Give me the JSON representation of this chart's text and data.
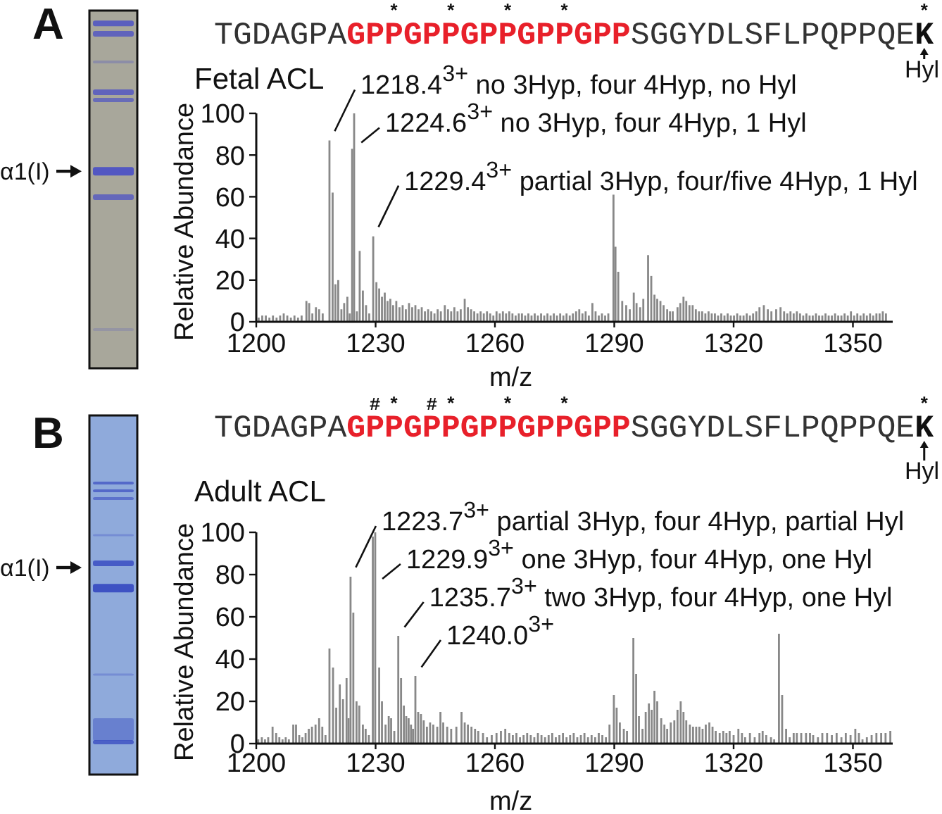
{
  "chart_data": [
    {
      "type": "bar",
      "title": "Fetal ACL",
      "xlabel": "m/z",
      "ylabel": "Relative Abundance",
      "color": "#888888",
      "xlim": [
        1200,
        1360
      ],
      "xticks": [
        1200,
        1230,
        1260,
        1290,
        1320,
        1350
      ],
      "ylim": [
        0,
        100
      ],
      "yticks": [
        0,
        20,
        40,
        60,
        80,
        100
      ],
      "x": [
        1200.6,
        1201.5,
        1202.4,
        1203.3,
        1204.2,
        1205.1,
        1206,
        1206.9,
        1207.8,
        1208.7,
        1209.6,
        1210.5,
        1211.4,
        1212.6,
        1213.3,
        1214.1,
        1215,
        1215.8,
        1216.7,
        1218.4,
        1219.2,
        1219.9,
        1220.6,
        1221.4,
        1222.1,
        1222.9,
        1223.5,
        1224.1,
        1224.6,
        1225.3,
        1226,
        1226.8,
        1227.6,
        1228.4,
        1229.4,
        1230.2,
        1230.9,
        1231.6,
        1232.3,
        1233,
        1233.7,
        1234.4,
        1235.2,
        1236,
        1236.8,
        1237.6,
        1238.4,
        1239.2,
        1240,
        1240.8,
        1241.6,
        1242.4,
        1243.2,
        1244,
        1244.8,
        1245.6,
        1246.4,
        1247.4,
        1248.2,
        1249,
        1249.8,
        1250.6,
        1251.4,
        1252.4,
        1253.2,
        1254,
        1254.8,
        1255.6,
        1256.4,
        1257.2,
        1258,
        1258.8,
        1259.6,
        1260.4,
        1261.2,
        1262,
        1262.8,
        1263.6,
        1264.4,
        1265.2,
        1266,
        1266.8,
        1267.6,
        1268.4,
        1269.2,
        1270,
        1270.8,
        1271.6,
        1272.4,
        1273.2,
        1274,
        1274.8,
        1275.6,
        1276.4,
        1277.2,
        1278,
        1278.8,
        1279.6,
        1280.4,
        1281.2,
        1282,
        1282.8,
        1283.6,
        1284.5,
        1285.3,
        1286.1,
        1286.9,
        1287.7,
        1288.5,
        1289.8,
        1290.3,
        1291,
        1292,
        1293,
        1293.9,
        1294.9,
        1295.6,
        1296.5,
        1297.3,
        1298.5,
        1299.3,
        1300.1,
        1300.8,
        1301.6,
        1302.4,
        1303.3,
        1304,
        1304.7,
        1305.9,
        1306.6,
        1307.4,
        1308.1,
        1308.9,
        1309.7,
        1310.5,
        1311.3,
        1312.1,
        1312.9,
        1313.7,
        1314.5,
        1315.3,
        1316.1,
        1316.9,
        1317.7,
        1318.5,
        1319.3,
        1320.1,
        1320.9,
        1321.7,
        1322.5,
        1323.3,
        1324.1,
        1324.9,
        1325.7,
        1326.5,
        1327.6,
        1328.6,
        1329.5,
        1330.7,
        1331.8,
        1332.7,
        1333.5,
        1334.3,
        1335.1,
        1335.9,
        1336.7,
        1337.5,
        1338.3,
        1339.1,
        1339.9,
        1340.7,
        1341.5,
        1342.3,
        1343.1,
        1343.9,
        1344.7,
        1345.5,
        1346.3,
        1347.1,
        1347.9,
        1348.7,
        1349.5,
        1350.3,
        1351.1,
        1351.9,
        1352.7,
        1353.5,
        1354.3,
        1355.1,
        1355.9,
        1356.7,
        1357.5,
        1358.3
      ],
      "values": [
        2,
        3,
        3,
        2,
        3,
        2,
        3,
        4,
        3,
        2,
        3,
        2,
        3,
        10,
        9,
        4,
        7,
        6,
        4,
        87,
        62,
        18,
        20,
        6,
        9,
        12,
        4,
        83,
        100,
        5,
        34,
        15,
        8,
        4,
        41,
        19,
        16,
        12,
        14,
        10,
        11,
        8,
        10,
        7,
        8,
        6,
        9,
        7,
        8,
        6,
        7,
        5,
        6,
        5,
        4,
        6,
        5,
        8,
        6,
        5,
        7,
        5,
        6,
        11,
        7,
        6,
        5,
        4,
        5,
        4,
        5,
        4,
        3,
        5,
        4,
        5,
        4,
        5,
        4,
        3,
        4,
        4,
        3,
        4,
        3,
        4,
        3,
        4,
        3,
        4,
        3,
        4,
        3,
        4,
        3,
        4,
        3,
        4,
        5,
        6,
        4,
        5,
        3,
        9,
        5,
        3,
        4,
        3,
        4,
        61,
        36,
        24,
        10,
        8,
        6,
        14,
        9,
        7,
        11,
        32,
        22,
        13,
        11,
        10,
        8,
        6,
        5,
        5,
        7,
        9,
        12,
        10,
        8,
        8,
        6,
        5,
        5,
        4,
        5,
        4,
        4,
        3,
        4,
        3,
        4,
        3,
        3,
        4,
        3,
        3,
        4,
        3,
        4,
        5,
        7,
        8,
        6,
        5,
        6,
        7,
        5,
        4,
        5,
        4,
        5,
        4,
        3,
        4,
        3,
        3,
        4,
        3,
        3,
        4,
        3,
        3,
        4,
        3,
        3,
        4,
        3,
        5,
        3,
        4,
        3,
        4,
        3,
        4,
        3,
        4,
        4,
        5,
        4
      ],
      "annotations": [
        "A",
        "TGDAGPA",
        "GPPGPPGPPGPPGPP",
        "SGGYDLSFLPQPPQE",
        "K",
        "         *  *  *  *                  *",
        "Hyl",
        "α1(I)",
        {
          "text": "1218.4$^{3+}$ no 3Hyp, four 4Hyp, no Hyl",
          "x": 1218.4,
          "y": 87
        },
        {
          "text": "1224.6$^{3+}$ no 3Hyp, four 4Hyp, 1 Hyl",
          "x": 1224.6,
          "y": 100
        },
        {
          "text": "1229.4$^{3+}$ partial 3Hyp, four/five 4Hyp, 1 Hyl",
          "x": 1229.4,
          "y": 41
        }
      ]
    },
    {
      "type": "bar",
      "title": "Adult ACL",
      "xlabel": "m/z",
      "ylabel": "Relative Abundance",
      "color": "#888888",
      "xlim": [
        1200,
        1360
      ],
      "xticks": [
        1200,
        1230,
        1260,
        1290,
        1320,
        1350
      ],
      "ylim": [
        0,
        100
      ],
      "yticks": [
        0,
        20,
        40,
        60,
        80,
        100
      ],
      "x": [
        1200.5,
        1201.4,
        1202.2,
        1203,
        1204.1,
        1205,
        1205.8,
        1206.6,
        1207.4,
        1208.2,
        1209.3,
        1210,
        1210.8,
        1211.6,
        1212.4,
        1213.2,
        1214,
        1214.9,
        1215.8,
        1216.6,
        1217.4,
        1218.4,
        1219.3,
        1220.1,
        1221,
        1221.8,
        1222.7,
        1223.2,
        1223.7,
        1224.4,
        1225.2,
        1225.9,
        1226.8,
        1227.5,
        1228.3,
        1229.3,
        1229.9,
        1230.9,
        1231.6,
        1232.5,
        1233.3,
        1233.9,
        1234.7,
        1235.7,
        1236.4,
        1237.1,
        1237.7,
        1238.3,
        1238.9,
        1239.4,
        1240,
        1240.7,
        1241.4,
        1242.1,
        1242.9,
        1243.7,
        1244.5,
        1245.5,
        1246.3,
        1247,
        1248,
        1249,
        1250.3,
        1251.6,
        1252.4,
        1253.2,
        1254.1,
        1255,
        1255.8,
        1257,
        1258,
        1259.2,
        1260.4,
        1261.5,
        1262.6,
        1263.6,
        1264.5,
        1265.4,
        1266.3,
        1267.2,
        1268.1,
        1269,
        1269.9,
        1270.8,
        1271.7,
        1272.6,
        1273.5,
        1274.4,
        1275.3,
        1276.2,
        1277.1,
        1278,
        1278.9,
        1279.8,
        1280.7,
        1281.6,
        1282.5,
        1283.4,
        1284.3,
        1285.2,
        1286.1,
        1287,
        1287.9,
        1288.8,
        1289.9,
        1290.6,
        1291.4,
        1292.4,
        1293.2,
        1294.8,
        1295.5,
        1296.2,
        1297.1,
        1297.9,
        1298.7,
        1299.4,
        1300.1,
        1300.8,
        1301.8,
        1302.6,
        1303.3,
        1304.2,
        1305.1,
        1305.9,
        1306.7,
        1307.4,
        1308.1,
        1309,
        1309.8,
        1310.6,
        1311.4,
        1312.2,
        1313,
        1313.9,
        1314.7,
        1315.5,
        1316.5,
        1317.4,
        1318.2,
        1319,
        1320,
        1321.2,
        1322.1,
        1322.9,
        1324.1,
        1325.3,
        1326.5,
        1327.3,
        1328.2,
        1329.4,
        1330.2,
        1331.4,
        1332.2,
        1333.2,
        1334.1,
        1335.1,
        1335.9,
        1337,
        1338.2,
        1339.2,
        1340,
        1341.2,
        1342.3,
        1343.5,
        1344.7,
        1345.9,
        1347.1,
        1348.2,
        1349.4,
        1350.6,
        1351.5,
        1352.4,
        1353.5,
        1354.7,
        1355.9,
        1357.1,
        1358.2,
        1359.4
      ],
      "values": [
        2,
        3,
        2,
        3,
        8,
        5,
        3,
        2,
        3,
        2,
        9,
        9,
        4,
        3,
        5,
        7,
        8,
        9,
        12,
        8,
        4,
        45,
        36,
        17,
        28,
        21,
        31,
        12,
        79,
        62,
        20,
        18,
        9,
        7,
        4,
        98,
        100,
        36,
        20,
        9,
        13,
        12,
        6,
        51,
        31,
        18,
        13,
        12,
        9,
        7,
        32,
        15,
        14,
        11,
        8,
        10,
        9,
        8,
        15,
        10,
        8,
        7,
        8,
        15,
        10,
        9,
        8,
        7,
        6,
        5,
        3,
        4,
        5,
        6,
        7,
        5,
        4,
        5,
        3,
        4,
        5,
        4,
        3,
        5,
        4,
        3,
        4,
        5,
        3,
        4,
        5,
        3,
        4,
        5,
        3,
        4,
        5,
        3,
        4,
        3,
        5,
        4,
        3,
        9,
        23,
        17,
        10,
        7,
        6,
        50,
        33,
        13,
        7,
        15,
        19,
        16,
        25,
        20,
        12,
        9,
        7,
        10,
        11,
        16,
        20,
        15,
        11,
        9,
        8,
        8,
        8,
        7,
        9,
        10,
        8,
        6,
        5,
        6,
        5,
        6,
        4,
        7,
        5,
        3,
        5,
        3,
        5,
        6,
        4,
        3,
        2,
        52,
        23,
        7,
        3,
        5,
        5,
        5,
        5,
        5,
        4,
        3,
        5,
        5,
        4,
        5,
        3,
        5,
        4,
        7,
        5,
        2,
        3,
        4,
        5,
        5,
        5,
        6
      ],
      "annotations": [
        "B",
        "TGDAGPA",
        "GPPGPPGPPGPPGPP",
        "SGGYDLSFLPQPPQE",
        "K",
        "        #* #*  *  *                  *",
        "Hyl",
        "α1(I)",
        {
          "text": "1223.7$^{3+}$ partial 3Hyp, four 4Hyp, partial Hyl",
          "x": 1223.7,
          "y": 79
        },
        {
          "text": "1229.9$^{3+}$ one 3Hyp, four 4Hyp, one Hyl",
          "x": 1229.9,
          "y": 100
        },
        {
          "text": "1235.7$^{3+}$ two 3Hyp, four 4Hyp, one Hyl",
          "x": 1235.7,
          "y": 51
        },
        {
          "text": "1240.0$^{3+}$",
          "x": 1240.0,
          "y": 32
        }
      ]
    }
  ]
}
